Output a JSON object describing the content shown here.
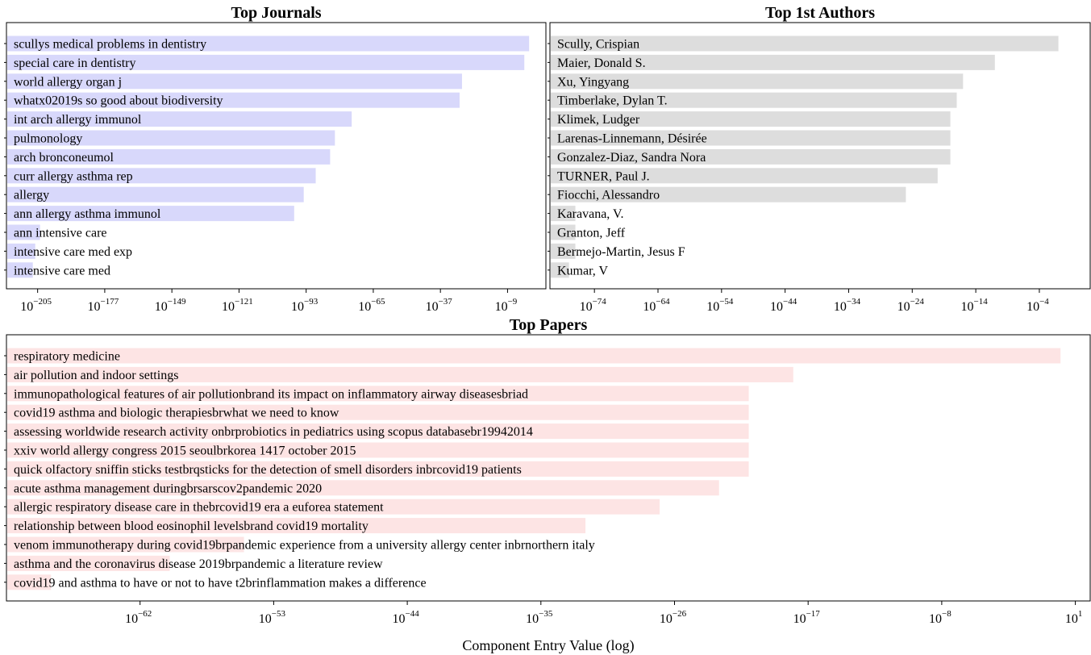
{
  "chart_data": [
    {
      "type": "bar",
      "orientation": "horizontal",
      "title": "Top Journals",
      "xscale": "log",
      "x_exponent_range": [
        -218,
        7
      ],
      "x_tick_exponents": [
        -205,
        -177,
        -149,
        -121,
        -93,
        -65,
        -37,
        -9
      ],
      "x_tick_base": "10",
      "bar_color": "#d8d8fb",
      "categories": [
        "scullys medical problems in dentistry",
        "special care in dentistry",
        "world allergy organ j",
        "whatx02019s so good about biodiversity",
        "int arch allergy immunol",
        "pulmonology",
        "arch bronconeumol",
        "curr allergy asthma rep",
        "allergy",
        "ann allergy asthma immunol",
        "ann intensive care",
        "intensive care med exp",
        "intensive care med"
      ],
      "value_exponents": [
        0,
        -2,
        -28,
        -29,
        -74,
        -81,
        -83,
        -89,
        -94,
        -98,
        -204,
        -206,
        -207
      ]
    },
    {
      "type": "bar",
      "orientation": "horizontal",
      "title": "Top 1st Authors",
      "xscale": "log",
      "x_exponent_range": [
        -81,
        4
      ],
      "x_tick_exponents": [
        -74,
        -64,
        -54,
        -44,
        -34,
        -24,
        -14,
        -4
      ],
      "x_tick_base": "10",
      "bar_color": "#dddddd",
      "categories": [
        "Scully, Crispian",
        "Maier, Donald S.",
        "Xu, Yingyang",
        "Timberlake, Dylan T.",
        "Klimek, Ludger",
        "Larenas-Linnemann, Désirée",
        "Gonzalez-Diaz, Sandra Nora",
        "TURNER, Paul J.",
        "Fiocchi, Alessandro",
        "Karavana, V.",
        "Granton, Jeff",
        "Bermejo-Martin, Jesus F",
        "Kumar, V"
      ],
      "value_exponents": [
        -1,
        -11,
        -16,
        -17,
        -18,
        -18,
        -18,
        -20,
        -25,
        -77,
        -77,
        -77,
        -78
      ]
    },
    {
      "type": "bar",
      "orientation": "horizontal",
      "title": "Top Papers",
      "xlabel": "Component Entry Value (log)",
      "xscale": "log",
      "x_exponent_range": [
        -71,
        2
      ],
      "x_tick_exponents": [
        -62,
        -53,
        -44,
        -35,
        -26,
        -17,
        -8,
        1
      ],
      "x_tick_base": "10",
      "bar_color": "#fde4e4",
      "categories": [
        "respiratory medicine",
        "air pollution and indoor settings",
        "immunopathological features of air pollutionbrand its impact on inflammatory airway diseasesbriad",
        "covid19 asthma and biologic therapiesbrwhat we need to know",
        "assessing worldwide research activity onbrprobiotics in pediatrics using scopus databasebr19942014",
        "xxiv world allergy congress 2015 seoulbrkorea 1417 october 2015",
        "quick olfactory sniffin sticks testbrqsticks for the detection of smell disorders inbrcovid19 patients",
        "acute asthma management duringbrsarscov2pandemic 2020",
        "allergic respiratory disease care in thebrcovid19 era a euforea statement",
        "relationship between blood eosinophil levelsbrand covid19 mortality",
        "venom immunotherapy during covid19brpandemic experience from a university allergy center inbrnorthern italy",
        "asthma and the coronavirus disease 2019brpandemic a literature review",
        "covid19 and asthma to have or not to have t2brinflammation makes a difference"
      ],
      "value_exponents": [
        0,
        -18,
        -21,
        -21,
        -21,
        -21,
        -21,
        -23,
        -27,
        -32,
        -55,
        -60,
        -68
      ]
    }
  ]
}
